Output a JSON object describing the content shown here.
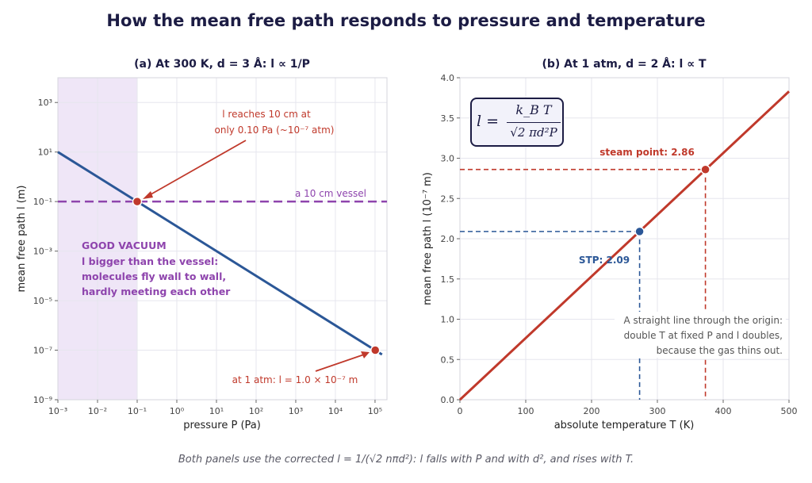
{
  "title": "How the mean free path responds to pressure and temperature",
  "footnote": "Both panels use the corrected l = 1/(√2 nπd²): l falls with P and with d², and rises with T.",
  "formula": {
    "lhs": "l =",
    "num": "k_B T",
    "den": "√2 πd²P"
  },
  "colors": {
    "title": "#1c1c44",
    "line_a": "#2b5797",
    "point": "#c0392b",
    "vessel": "#8e44ad",
    "vacuum_band": "#efe6f7",
    "line_b": "#c0392b",
    "stp": "#2b5797"
  },
  "chart_data": [
    {
      "type": "line",
      "title": "(a) At 300 K, d = 3 Å:  l ∝ 1/P",
      "xlabel": "pressure  P  (Pa)",
      "ylabel": "mean free path  l  (m)",
      "xscale": "log",
      "yscale": "log",
      "xlim": [
        0.001,
        200000
      ],
      "ylim": [
        1e-09,
        10000.0
      ],
      "xticks": [
        "10⁻³",
        "10⁻²",
        "10⁻¹",
        "10⁰",
        "10¹",
        "10²",
        "10³",
        "10⁴",
        "10⁵"
      ],
      "yticks": [
        "10⁻⁹",
        "10⁻⁷",
        "10⁻⁵",
        "10⁻³",
        "10⁻¹",
        "10¹",
        "10³"
      ],
      "series": [
        {
          "x": [
            0.001,
            150000
          ],
          "y": [
            10,
            6.7e-08
          ]
        }
      ],
      "points": [
        {
          "x": 0.1,
          "y": 0.1
        },
        {
          "x": 101325,
          "y": 1e-07
        }
      ],
      "hline": {
        "y": 0.1,
        "label": "a 10 cm vessel"
      },
      "shaded_region": {
        "x": [
          0.001,
          0.1
        ]
      },
      "annotations": {
        "reach": [
          "l reaches 10 cm at",
          "only 0.10 Pa (~10⁻⁷ atm)"
        ],
        "atm": "at 1 atm:  l = 1.0 × 10⁻⁷ m",
        "vacuum_title": "GOOD VACUUM",
        "vacuum_lines": [
          "l bigger than the vessel:",
          "molecules fly wall to wall,",
          "hardly meeting each other"
        ]
      },
      "grid": true
    },
    {
      "type": "line",
      "title": "(b) At 1 atm, d = 2 Å:  l ∝ T",
      "xlabel": "absolute temperature  T  (K)",
      "ylabel": "mean free path  l  (10⁻⁷ m)",
      "xlim": [
        0,
        500
      ],
      "ylim": [
        0,
        4.0
      ],
      "xticks": [
        "0",
        "100",
        "200",
        "300",
        "400",
        "500"
      ],
      "yticks": [
        "0.0",
        "0.5",
        "1.0",
        "1.5",
        "2.0",
        "2.5",
        "3.0",
        "3.5",
        "4.0"
      ],
      "series": [
        {
          "x": [
            0,
            500
          ],
          "y": [
            0,
            3.83
          ]
        }
      ],
      "points": [
        {
          "label": "STP: 2.09",
          "x": 273,
          "y": 2.09
        },
        {
          "label": "steam point: 2.86",
          "x": 373,
          "y": 2.86
        }
      ],
      "note": [
        "A straight line through the origin:",
        "double T at fixed P and l doubles,",
        "because the gas thins out."
      ],
      "grid": true
    }
  ]
}
